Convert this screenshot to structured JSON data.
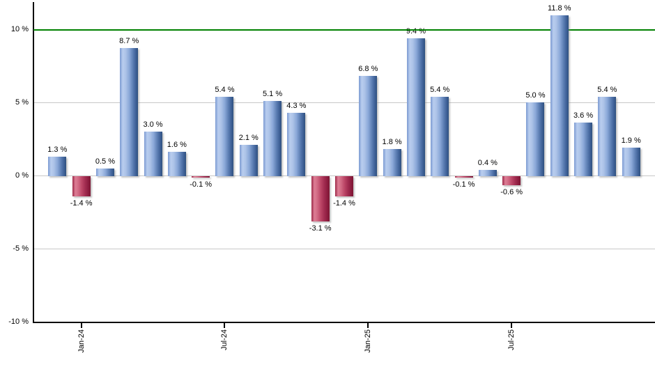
{
  "chart_data": {
    "type": "bar",
    "unit": "%",
    "title": "",
    "xlabel": "",
    "ylabel": "",
    "values": [
      1.3,
      -1.4,
      0.5,
      8.7,
      3.0,
      1.6,
      -0.1,
      5.4,
      2.1,
      5.1,
      4.3,
      -3.1,
      -1.4,
      6.8,
      1.8,
      9.4,
      5.4,
      -0.1,
      0.4,
      -0.6,
      5.0,
      11.8,
      3.6,
      5.4,
      1.9
    ],
    "value_labels": [
      "1.3 %",
      "-1.4 %",
      "0.5 %",
      "8.7 %",
      "3.0 %",
      "1.6 %",
      "-0.1 %",
      "5.4 %",
      "2.1 %",
      "5.1 %",
      "4.3 %",
      "-3.1 %",
      "-1.4 %",
      "6.8 %",
      "1.8 %",
      "9.4 %",
      "5.4 %",
      "-0.1 %",
      "0.4 %",
      "-0.6 %",
      "5.0 %",
      "11.8 %",
      "3.6 %",
      "5.4 %",
      "1.9 %"
    ],
    "x_ticks": [
      {
        "label": "Jan-24",
        "bar_index": 1
      },
      {
        "label": "Jul-24",
        "bar_index": 7
      },
      {
        "label": "Jan-25",
        "bar_index": 13
      },
      {
        "label": "Jul-25",
        "bar_index": 19
      }
    ],
    "y_ticks": [
      {
        "label": "10 %",
        "value": 10
      },
      {
        "label": "5 %",
        "value": 5
      },
      {
        "label": "0 %",
        "value": 0
      },
      {
        "label": "-5 %",
        "value": -5
      },
      {
        "label": "-10 %",
        "value": -10
      }
    ],
    "ylim": [
      -10.1,
      12
    ],
    "grid": true,
    "legend": false,
    "threshold_line": {
      "value": 10,
      "color": "#008000"
    },
    "colors": {
      "positive_bar_light": "#b9cdee",
      "positive_bar_dark": "#30517f",
      "negative_bar_light": "#dd7e95",
      "negative_bar_dark": "#7d1634",
      "gridline": "#c8c8c8",
      "axis": "#000000",
      "label_text": "#000000"
    }
  }
}
